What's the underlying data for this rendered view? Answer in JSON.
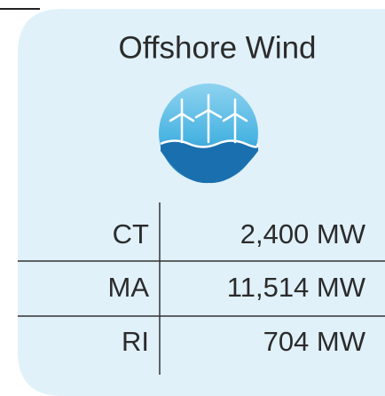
{
  "title": "Offshore Wind",
  "table": {
    "rows": [
      [
        "CT",
        "2,400 MW"
      ],
      [
        "MA",
        "11,514 MW"
      ],
      [
        "RI",
        "704 MW"
      ]
    ]
  }
}
